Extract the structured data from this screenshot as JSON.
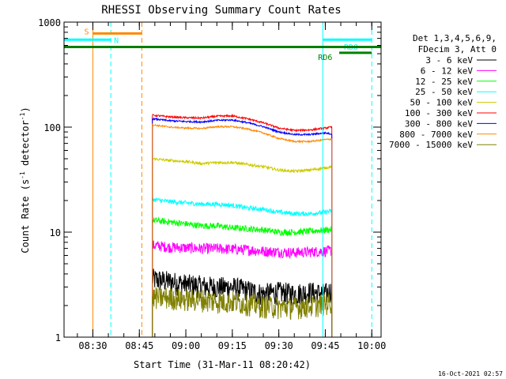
{
  "chart_data": {
    "type": "line",
    "title": "RHESSI Observing Summary Count Rates",
    "xlabel": "Start Time (31-Mar-11 08:20:42)",
    "ylabel_parts": [
      "Count Rate (s",
      "-1",
      " detector",
      "-1",
      ")"
    ],
    "yscale": "log",
    "ylim": [
      1,
      1000
    ],
    "xlim_minutes": [
      500.7,
      603
    ],
    "x_ticks": [
      {
        "t": 510,
        "label": "08:30"
      },
      {
        "t": 525,
        "label": "08:45"
      },
      {
        "t": 540,
        "label": "09:00"
      },
      {
        "t": 555,
        "label": "09:15"
      },
      {
        "t": 570,
        "label": "09:30"
      },
      {
        "t": 585,
        "label": "09:45"
      },
      {
        "t": 600,
        "label": "10:00"
      }
    ],
    "y_ticks": [
      {
        "v": 1,
        "label": "1"
      },
      {
        "v": 10,
        "label": "10"
      },
      {
        "v": 100,
        "label": "100"
      },
      {
        "v": 1000,
        "label": "1000"
      }
    ],
    "legend_header": [
      "Det 1,3,4,5,6,9,",
      "FDecim 3, Att 0"
    ],
    "legend_position": "right",
    "series": [
      {
        "name": "3 - 6 keV",
        "color": "#000000",
        "points": [
          [
            529.2,
            3.6
          ],
          [
            535,
            3.4
          ],
          [
            540,
            3.2
          ],
          [
            545,
            3.1
          ],
          [
            550,
            3.0
          ],
          [
            555,
            3.0
          ],
          [
            560,
            2.8
          ],
          [
            565,
            2.6
          ],
          [
            570,
            2.7
          ],
          [
            575,
            2.6
          ],
          [
            580,
            2.7
          ],
          [
            585,
            2.6
          ],
          [
            587.1,
            2.8
          ]
        ],
        "noise": 0.25
      },
      {
        "name": "6 - 12 keV",
        "color": "#ff00ff",
        "points": [
          [
            529.2,
            7.5
          ],
          [
            535,
            7.2
          ],
          [
            540,
            7.1
          ],
          [
            545,
            7.0
          ],
          [
            550,
            7.0
          ],
          [
            555,
            6.9
          ],
          [
            560,
            6.8
          ],
          [
            565,
            6.6
          ],
          [
            570,
            6.5
          ],
          [
            575,
            6.4
          ],
          [
            580,
            6.5
          ],
          [
            585,
            6.6
          ],
          [
            587.1,
            6.7
          ]
        ],
        "noise": 0.12
      },
      {
        "name": "12 - 25 keV",
        "color": "#00ff00",
        "points": [
          [
            529.2,
            13.0
          ],
          [
            535,
            12.5
          ],
          [
            540,
            12.0
          ],
          [
            545,
            11.5
          ],
          [
            550,
            11.5
          ],
          [
            555,
            11.0
          ],
          [
            560,
            10.8
          ],
          [
            565,
            10.5
          ],
          [
            570,
            10.0
          ],
          [
            575,
            10.0
          ],
          [
            580,
            10.2
          ],
          [
            585,
            10.5
          ],
          [
            587.1,
            10.6
          ]
        ],
        "noise": 0.07
      },
      {
        "name": "25 - 50 keV",
        "color": "#00ffff",
        "points": [
          [
            529.2,
            20.5
          ],
          [
            535,
            19.5
          ],
          [
            540,
            19.0
          ],
          [
            545,
            18.5
          ],
          [
            550,
            18.5
          ],
          [
            555,
            18.0
          ],
          [
            560,
            17.0
          ],
          [
            565,
            16.5
          ],
          [
            570,
            15.5
          ],
          [
            575,
            15.0
          ],
          [
            580,
            15.0
          ],
          [
            585,
            15.5
          ],
          [
            587.1,
            16.0
          ]
        ],
        "noise": 0.05
      },
      {
        "name": "50 - 100 keV",
        "color": "#cccc00",
        "points": [
          [
            529.2,
            50.0
          ],
          [
            535,
            48.0
          ],
          [
            540,
            47.0
          ],
          [
            545,
            45.0
          ],
          [
            550,
            46.0
          ],
          [
            555,
            46.0
          ],
          [
            560,
            44.0
          ],
          [
            565,
            42.0
          ],
          [
            570,
            39.0
          ],
          [
            575,
            38.0
          ],
          [
            580,
            39.0
          ],
          [
            585,
            41.0
          ],
          [
            587.1,
            42.0
          ]
        ],
        "noise": 0.03
      },
      {
        "name": "100 - 300 keV",
        "color": "#ff0000",
        "points": [
          [
            529.2,
            130
          ],
          [
            535,
            125
          ],
          [
            540,
            123
          ],
          [
            545,
            122
          ],
          [
            550,
            127
          ],
          [
            555,
            128
          ],
          [
            560,
            120
          ],
          [
            565,
            110
          ],
          [
            570,
            98
          ],
          [
            575,
            93
          ],
          [
            580,
            94
          ],
          [
            585,
            98
          ],
          [
            587.1,
            100
          ]
        ],
        "noise": 0.02
      },
      {
        "name": "300 - 800 keV",
        "color": "#0000ff",
        "points": [
          [
            529.2,
            120
          ],
          [
            535,
            115
          ],
          [
            540,
            113
          ],
          [
            545,
            112
          ],
          [
            550,
            116
          ],
          [
            555,
            117
          ],
          [
            560,
            110
          ],
          [
            565,
            101
          ],
          [
            570,
            90
          ],
          [
            575,
            85
          ],
          [
            580,
            85
          ],
          [
            585,
            88
          ],
          [
            587.1,
            86
          ]
        ],
        "noise": 0.018
      },
      {
        "name": "800 - 7000 keV",
        "color": "#ff8800",
        "points": [
          [
            529.2,
            105
          ],
          [
            535,
            100
          ],
          [
            540,
            98
          ],
          [
            545,
            97
          ],
          [
            550,
            101
          ],
          [
            555,
            101
          ],
          [
            560,
            96
          ],
          [
            565,
            88
          ],
          [
            570,
            78
          ],
          [
            575,
            73
          ],
          [
            580,
            73
          ],
          [
            585,
            76
          ],
          [
            587.1,
            77
          ]
        ],
        "noise": 0.018
      },
      {
        "name": "7000 - 15000 keV",
        "color": "#808000",
        "points": [
          [
            529.2,
            2.4
          ],
          [
            535,
            2.4
          ],
          [
            540,
            2.3
          ],
          [
            545,
            2.3
          ],
          [
            550,
            2.2
          ],
          [
            555,
            2.2
          ],
          [
            560,
            2.1
          ],
          [
            565,
            2.0
          ],
          [
            570,
            1.95
          ],
          [
            575,
            1.95
          ],
          [
            580,
            2.0
          ],
          [
            585,
            2.1
          ],
          [
            587.1,
            2.2
          ]
        ],
        "noise": 0.25
      }
    ],
    "vertical_markers": [
      {
        "t": 510,
        "color": "#ff8800",
        "style": "solid"
      },
      {
        "t": 525.8,
        "color": "#ff8800",
        "style": "dashed"
      },
      {
        "t": 500.7,
        "color": "#00ffff",
        "style": "solid"
      },
      {
        "t": 515.8,
        "color": "#00ffff",
        "style": "dashed"
      },
      {
        "t": 584.2,
        "color": "#00ffff",
        "style": "solid"
      },
      {
        "t": 600.0,
        "color": "#00ffff",
        "style": "dashed"
      }
    ],
    "horizontal_bars": [
      {
        "label": "S",
        "color": "#ff8800",
        "t0": 510,
        "t1": 525.8,
        "level": 780,
        "label_t": 507.2,
        "label_level": 820
      },
      {
        "label": "N",
        "color": "#00ffff",
        "t0": 500.7,
        "t1": 515.8,
        "level": 680,
        "label_t": 516.8,
        "label_level": 680
      },
      {
        "label": "RD0",
        "color": "#00ffff",
        "t0": 584.2,
        "t1": 600.0,
        "level": 680,
        "label_t": 591.0,
        "label_level": 585
      },
      {
        "label": "RD6",
        "color": "#008000",
        "t0": 500.7,
        "t1": 603,
        "level": 580,
        "label_t": 0,
        "label_level": 0
      },
      {
        "label": "",
        "color": "#008000",
        "t0": 589.5,
        "t1": 600.0,
        "level": 510,
        "label_t": 0,
        "label_level": 0
      }
    ],
    "rd6_label": {
      "text": "RD6",
      "t": 584.2,
      "level": 500,
      "color": "#008000"
    }
  },
  "footer_timestamp": "16-Oct-2021 02:57"
}
